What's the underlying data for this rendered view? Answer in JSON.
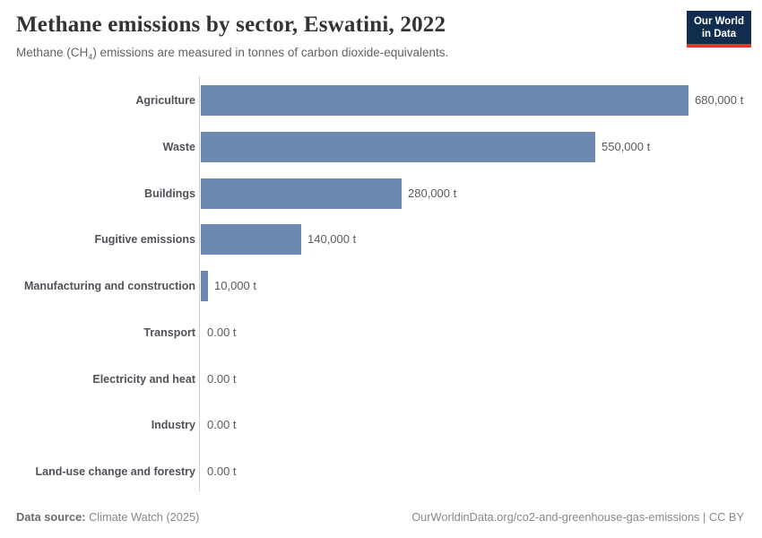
{
  "header": {
    "title": "Methane emissions by sector, Eswatini, 2022",
    "subtitle_prefix": "Methane (CH",
    "subtitle_sub": "4",
    "subtitle_suffix": ") emissions are measured in tonnes of carbon dioxide-equivalents.",
    "logo": {
      "line1": "Our World",
      "line2": "in Data",
      "background_color": "#102d4e",
      "accent_color": "#e0362d"
    }
  },
  "chart_data": {
    "type": "bar",
    "orientation": "horizontal",
    "title": "Methane emissions by sector, Eswatini, 2022",
    "unit": "tonnes of carbon dioxide-equivalents",
    "categories": [
      "Agriculture",
      "Waste",
      "Buildings",
      "Fugitive emissions",
      "Manufacturing and construction",
      "Transport",
      "Electricity and heat",
      "Industry",
      "Land-use change and forestry"
    ],
    "values": [
      680000,
      550000,
      280000,
      140000,
      10000,
      0,
      0,
      0,
      0
    ],
    "value_labels": [
      "680,000 t",
      "550,000 t",
      "280,000 t",
      "140,000 t",
      "10,000 t",
      "0.00 t",
      "0.00 t",
      "0.00 t",
      "0.00 t"
    ],
    "xlim": [
      0,
      680000
    ],
    "bar_color": "#6e89af",
    "grid": false,
    "legend": "none"
  },
  "footer": {
    "source_label": "Data source:",
    "source_value": " Climate Watch (2025)",
    "link": "OurWorldinData.org/co2-and-greenhouse-gas-emissions | CC BY"
  }
}
